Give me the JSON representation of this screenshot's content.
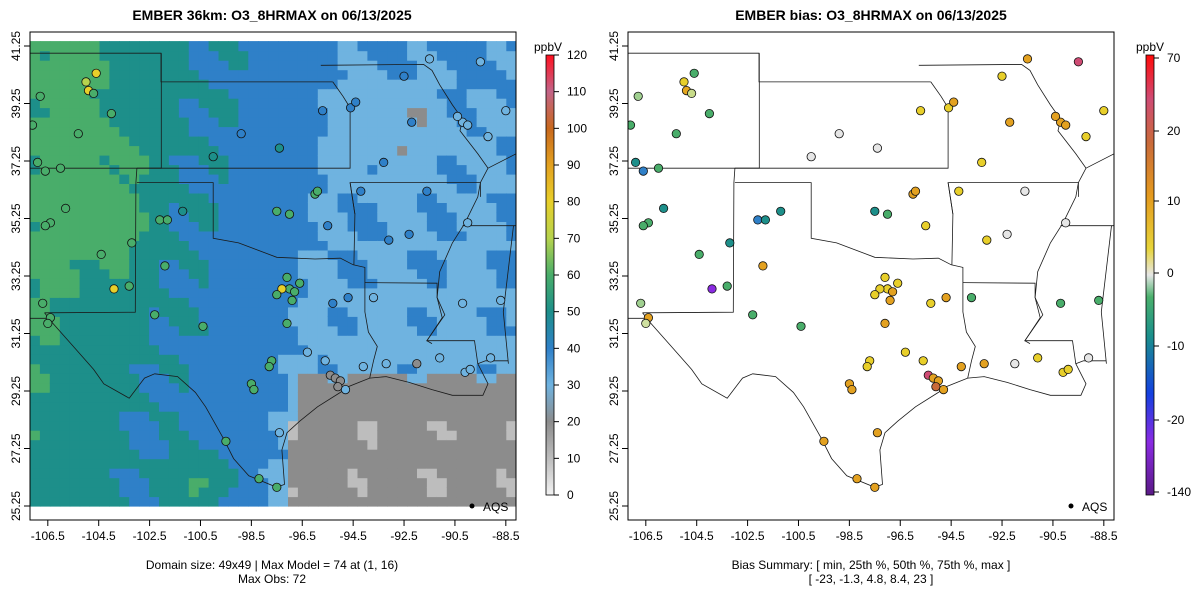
{
  "chart_data": [
    {
      "type": "heatmap",
      "title": "EMBER 36km: O3_8HRMAX on 06/13/2025",
      "xlabel": "",
      "ylabel": "",
      "x_ticks": [
        "-106.5",
        "-104.5",
        "-102.5",
        "-100.5",
        "-98.5",
        "-96.5",
        "-94.5",
        "-92.5",
        "-90.5",
        "-88.5"
      ],
      "y_ticks": [
        "25.25",
        "27.25",
        "29.25",
        "31.25",
        "33.25",
        "35.25",
        "37.25",
        "39.25",
        "41.25"
      ],
      "xlim": [
        -107.2,
        -88.1
      ],
      "ylim": [
        25.25,
        41.25
      ],
      "colorbar": {
        "unit": "ppbV",
        "ticks": [
          "0",
          "10",
          "20",
          "30",
          "40",
          "50",
          "60",
          "70",
          "80",
          "90",
          "100",
          "110",
          "120"
        ],
        "range": [
          0,
          120
        ]
      },
      "legend": "AQS",
      "footer": [
        "Domain size: 49x49 | Max Model = 74 at (1, 16)",
        "Max Obs: 72"
      ]
    },
    {
      "type": "scatter",
      "title": "EMBER bias: O3_8HRMAX on 06/13/2025",
      "xlabel": "",
      "ylabel": "",
      "x_ticks": [
        "-106.5",
        "-104.5",
        "-102.5",
        "-100.5",
        "-98.5",
        "-96.5",
        "-94.5",
        "-92.5",
        "-90.5",
        "-88.5"
      ],
      "y_ticks": [
        "25.25",
        "27.25",
        "29.25",
        "31.25",
        "33.25",
        "35.25",
        "37.25",
        "39.25",
        "41.25"
      ],
      "xlim": [
        -107.2,
        -88.1
      ],
      "ylim": [
        25.25,
        41.25
      ],
      "colorbar": {
        "unit": "ppbV",
        "ticks": [
          "-140",
          "-20",
          "-10",
          "0",
          "10",
          "20",
          "70"
        ],
        "range": [
          -140,
          70
        ]
      },
      "legend": "AQS",
      "footer": [
        "Bias Summary: [ min, 25th %, 50th %, 75th %, max ]",
        "[ -23,   -1.3,   4.8,   8.4,   23 ]"
      ],
      "bias_summary": {
        "min": -23,
        "p25": -1.3,
        "p50": 4.8,
        "p75": 8.4,
        "max": 23
      }
    }
  ]
}
